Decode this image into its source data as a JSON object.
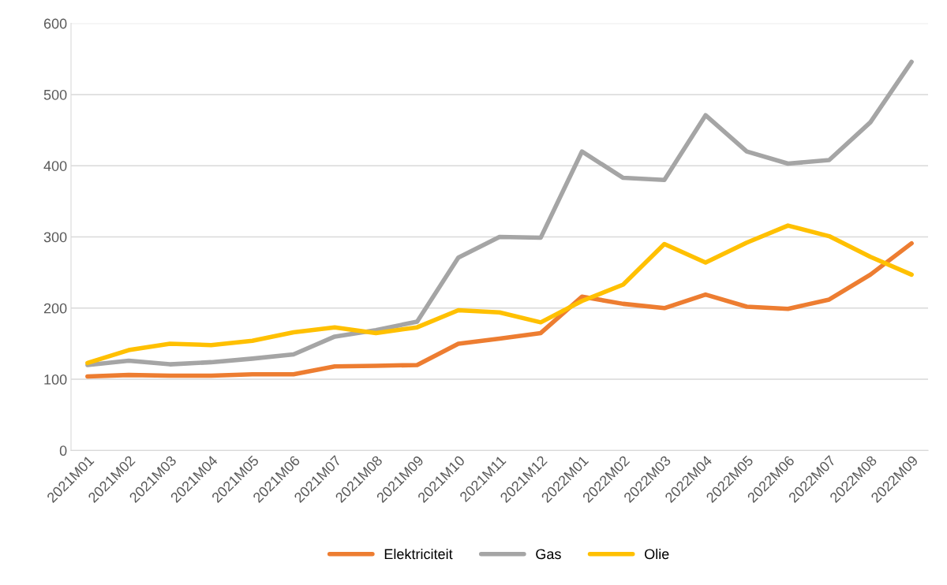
{
  "chart_data": {
    "type": "line",
    "categories": [
      "2021M01",
      "2021M02",
      "2021M03",
      "2021M04",
      "2021M05",
      "2021M06",
      "2021M07",
      "2021M08",
      "2021M09",
      "2021M10",
      "2021M11",
      "2021M12",
      "2022M01",
      "2022M02",
      "2022M03",
      "2022M04",
      "2022M05",
      "2022M06",
      "2022M07",
      "2022M08",
      "2022M09"
    ],
    "series": [
      {
        "name": "Elektriciteit",
        "color": "#ed7d31",
        "values": [
          104,
          106,
          105,
          105,
          107,
          107,
          118,
          119,
          120,
          150,
          157,
          165,
          216,
          206,
          200,
          219,
          202,
          199,
          212,
          247,
          291
        ]
      },
      {
        "name": "Gas",
        "color": "#a5a5a5",
        "values": [
          120,
          126,
          121,
          124,
          129,
          135,
          160,
          169,
          181,
          271,
          300,
          299,
          420,
          383,
          380,
          471,
          420,
          403,
          408,
          461,
          546
        ]
      },
      {
        "name": "Olie",
        "color": "#ffc000",
        "values": [
          123,
          141,
          150,
          148,
          154,
          166,
          173,
          165,
          173,
          197,
          194,
          180,
          210,
          233,
          290,
          264,
          292,
          316,
          301,
          272,
          247
        ]
      }
    ],
    "ylim": [
      0,
      600
    ],
    "yticks": [
      0,
      100,
      200,
      300,
      400,
      500,
      600
    ],
    "grid": "y",
    "legend": "bottom",
    "marker": "none",
    "line_style": "solid"
  }
}
